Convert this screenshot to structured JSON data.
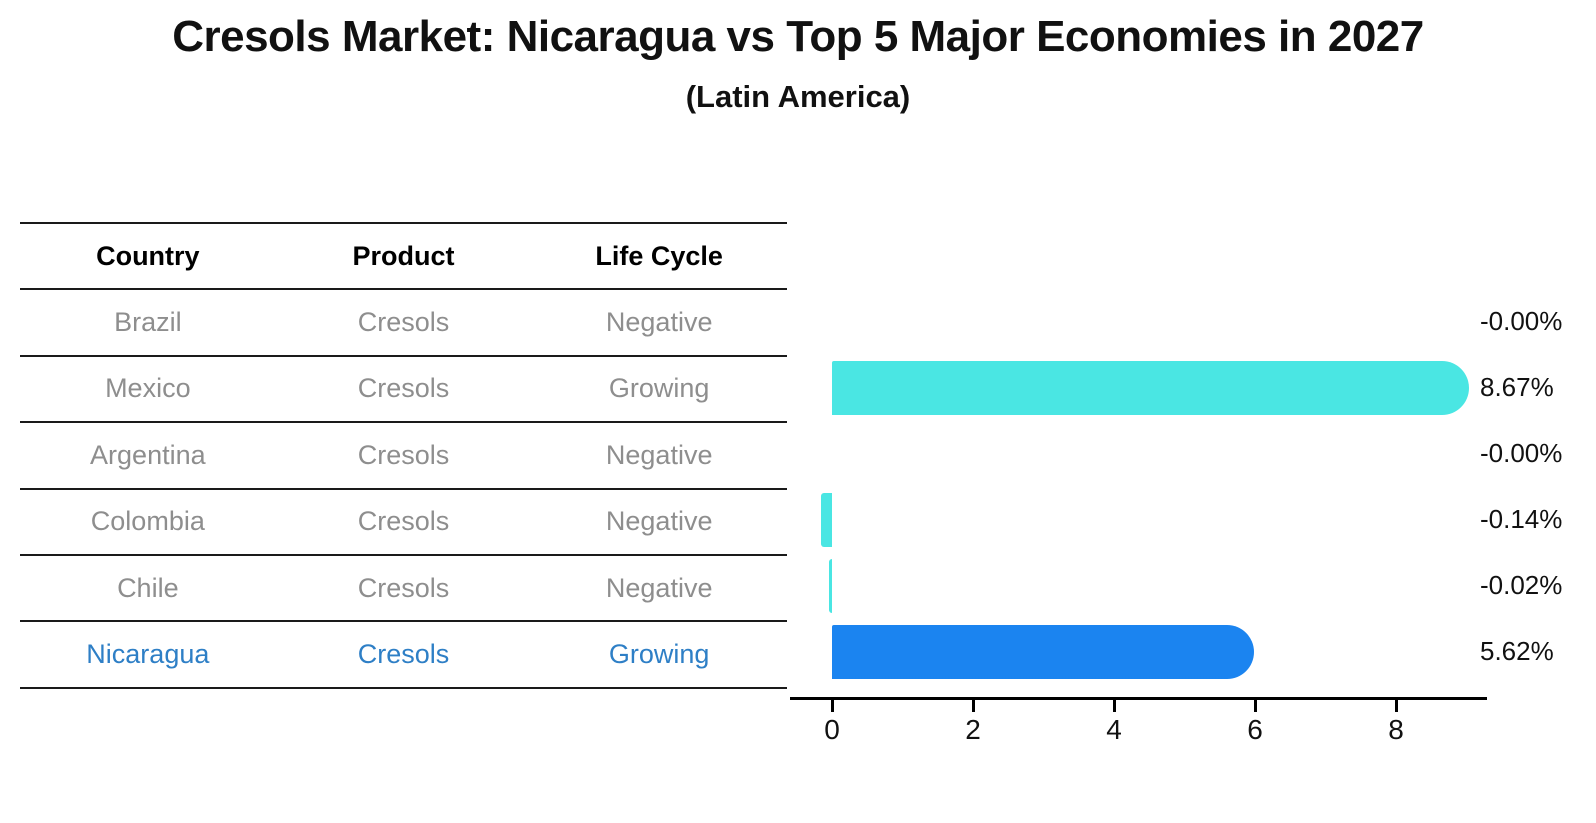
{
  "title": "Cresols Market: Nicaragua vs Top 5 Major Economies in 2027",
  "subtitle": "(Latin America)",
  "table": {
    "headers": [
      "Country",
      "Product",
      "Life Cycle"
    ],
    "rows": [
      {
        "country": "Brazil",
        "product": "Cresols",
        "life_cycle": "Negative",
        "highlight": false
      },
      {
        "country": "Mexico",
        "product": "Cresols",
        "life_cycle": "Growing",
        "highlight": false
      },
      {
        "country": "Argentina",
        "product": "Cresols",
        "life_cycle": "Negative",
        "highlight": false
      },
      {
        "country": "Colombia",
        "product": "Cresols",
        "life_cycle": "Negative",
        "highlight": false
      },
      {
        "country": "Chile",
        "product": "Cresols",
        "life_cycle": "Negative",
        "highlight": false
      },
      {
        "country": "Nicaragua",
        "product": "Cresols",
        "life_cycle": "Growing",
        "highlight": true
      }
    ]
  },
  "chart_data": {
    "type": "bar",
    "orientation": "horizontal",
    "title": "Cresols Market: Nicaragua vs Top 5 Major Economies in 2027",
    "subtitle": "(Latin America)",
    "categories": [
      "Brazil",
      "Mexico",
      "Argentina",
      "Colombia",
      "Chile",
      "Nicaragua"
    ],
    "values": [
      -0.0,
      8.67,
      -0.0,
      -0.14,
      -0.02,
      5.62
    ],
    "value_labels": [
      "-0.00%",
      "8.67%",
      "-0.00%",
      "-0.14%",
      "-0.02%",
      "5.62%"
    ],
    "unit": "percent",
    "x_ticks": [
      0,
      2,
      4,
      6,
      8
    ],
    "xlim": [
      -0.6,
      9.3
    ],
    "grid": false,
    "legend": "none",
    "highlight_index": 5,
    "highlight_style": "dotted-border"
  },
  "colors": {
    "bar_default": "#4AE6E3",
    "bar_highlight": "#1B84F0",
    "highlight_text": "#2E7FC6",
    "row_text": "#8E8E8E",
    "axis": "#000000",
    "title_text": "#111111"
  }
}
